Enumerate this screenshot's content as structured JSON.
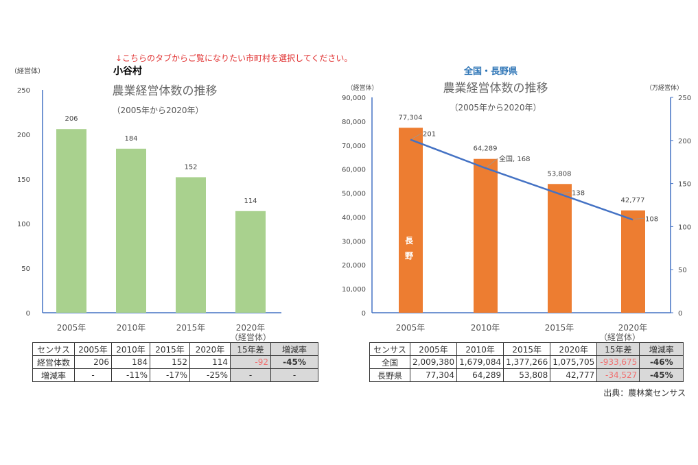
{
  "notice": "↓こちらのタブからご覧になりたい市町村を選択してください。",
  "source": "出典：農林業センサス",
  "colors": {
    "left_bar": "#a9d18e",
    "right_bar": "#ed7d31",
    "line": "#4472c4",
    "axis": "#4472c4",
    "notice": "#e03030",
    "name_right": "#2e75b6",
    "negative": "#f07070",
    "table_shade": "#d9d9d9"
  },
  "chart_data": [
    {
      "type": "bar",
      "name_label": "小谷村",
      "title": "農業経営体数の推移",
      "subtitle": "（2005年から2020年）",
      "ylabel": "（経営体）",
      "xunit": "（経営体）",
      "categories": [
        "2005年",
        "2010年",
        "2015年",
        "2020年"
      ],
      "values": [
        206,
        184,
        152,
        114
      ],
      "data_labels": [
        "206",
        "184",
        "152",
        "114"
      ],
      "ylim": [
        0,
        250
      ],
      "yticks": [
        "0",
        "50",
        "100",
        "150",
        "200",
        "250"
      ],
      "grid": false
    },
    {
      "type": "bar+line",
      "name_label": "全国・長野県",
      "title": "農業経営体数の推移",
      "subtitle": "（2005年から2020年）",
      "ylabel": "（経営体）",
      "y2label": "（万経営体）",
      "xunit": "（経営体）",
      "categories": [
        "2005年",
        "2010年",
        "2015年",
        "2020年"
      ],
      "series": [
        {
          "name": "長野",
          "axis": "left",
          "type": "bar",
          "values": [
            77304,
            64289,
            53808,
            42777
          ],
          "data_labels": [
            "77,304",
            "64,289",
            "53,808",
            "42,777"
          ],
          "name_chars": [
            "長",
            "野"
          ]
        },
        {
          "name": "全国",
          "axis": "right",
          "type": "line",
          "values": [
            201,
            168,
            138,
            108
          ],
          "data_labels": [
            "201",
            "全国, 168",
            "138",
            "108"
          ]
        }
      ],
      "ylim": [
        0,
        90000
      ],
      "yticks": [
        "0",
        "10,000",
        "20,000",
        "30,000",
        "40,000",
        "50,000",
        "60,000",
        "70,000",
        "80,000",
        "90,000"
      ],
      "y2lim": [
        0,
        250
      ],
      "y2ticks": [
        "0",
        "50",
        "100",
        "150",
        "200",
        "250"
      ],
      "grid": false
    }
  ],
  "left_table": {
    "header": [
      "センサス",
      "2005年",
      "2010年",
      "2015年",
      "2020年",
      "15年差",
      "増減率"
    ],
    "rows": [
      [
        "経営体数",
        "206",
        "184",
        "152",
        "114",
        "-92",
        "-45%"
      ],
      [
        "増減率",
        "-",
        "-11%",
        "-17%",
        "-25%",
        "-",
        "-"
      ]
    ]
  },
  "right_table": {
    "header": [
      "センサス",
      "2005年",
      "2010年",
      "2015年",
      "2020年",
      "15年差",
      "増減率"
    ],
    "rows": [
      [
        "全国",
        "2,009,380",
        "1,679,084",
        "1,377,266",
        "1,075,705",
        "-933,675",
        "-46%"
      ],
      [
        "長野県",
        "77,304",
        "64,289",
        "53,808",
        "42,777",
        "-34,527",
        "-45%"
      ]
    ]
  }
}
